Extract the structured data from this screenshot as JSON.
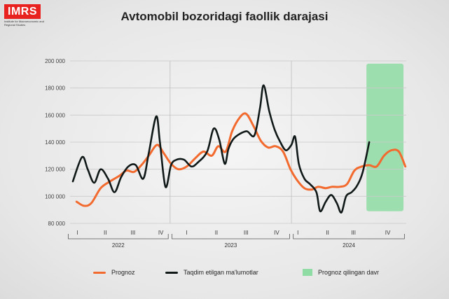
{
  "logo": {
    "text": "IMRS",
    "subtitle": "Institute for Macroeconomic and Regional Studies",
    "color": "#e8231f"
  },
  "chart_data": {
    "type": "line",
    "title": "Avtomobil bozoridagi faollik darajasi",
    "ylim": [
      80000,
      200000
    ],
    "y_ticks": [
      "200 000",
      "180 000",
      "160 000",
      "140 000",
      "120 000",
      "100 000",
      "80 000"
    ],
    "y_tick_values": [
      200000,
      180000,
      160000,
      140000,
      120000,
      100000,
      80000
    ],
    "x_domain": [
      0,
      36
    ],
    "grid": "horizontal",
    "legend_position": "bottom",
    "quarter_ticks": [
      {
        "label": "I",
        "x": 0.5
      },
      {
        "label": "II",
        "x": 3.5
      },
      {
        "label": "III",
        "x": 6.5
      },
      {
        "label": "IV",
        "x": 9.5
      },
      {
        "label": "I",
        "x": 12.3
      },
      {
        "label": "II",
        "x": 15.5
      },
      {
        "label": "III",
        "x": 18.7
      },
      {
        "label": "IV",
        "x": 22
      },
      {
        "label": "I",
        "x": 24.3
      },
      {
        "label": "II",
        "x": 27.5
      },
      {
        "label": "III",
        "x": 30.3
      },
      {
        "label": "IV",
        "x": 34
      }
    ],
    "years": [
      {
        "label": "2022",
        "x_start": -0.5,
        "x_end": 10.3
      },
      {
        "label": "2023",
        "x_start": 10.7,
        "x_end": 23.4
      },
      {
        "label": "2024",
        "x_start": 23.8,
        "x_end": 35.8
      }
    ],
    "year_separators": [
      10.5,
      23.6
    ],
    "forecast_period": {
      "label": "Prognoz qilingan davr",
      "x_start": 31.7,
      "x_end": 35.7,
      "y_min": 89000,
      "y_max": 198000,
      "color": "#8fdca4"
    },
    "series": [
      {
        "name": "Prognoz",
        "color": "#f26a2e",
        "x": [
          0.4,
          1.2,
          2.0,
          3.0,
          4.0,
          5.0,
          5.8,
          6.6,
          7.4,
          8.2,
          9.1,
          9.8,
          10.6,
          11.4,
          12.3,
          13.2,
          14.1,
          15.0,
          15.7,
          16.5,
          17.2,
          18.0,
          18.7,
          19.5,
          20.3,
          21.1,
          21.9,
          22.7,
          23.5,
          24.2,
          25.0,
          25.8,
          26.5,
          27.3,
          28.0,
          28.8,
          29.6,
          30.4,
          31.2,
          32.0,
          32.8,
          33.6,
          34.4,
          35.2,
          35.9
        ],
        "values": [
          96000,
          93000,
          95000,
          106000,
          111000,
          115000,
          119000,
          118000,
          123000,
          130000,
          138000,
          132000,
          124000,
          120000,
          122000,
          128000,
          133000,
          130000,
          137000,
          133000,
          148000,
          158000,
          161000,
          152000,
          141000,
          136000,
          137000,
          133000,
          120000,
          112000,
          106000,
          105000,
          107000,
          106000,
          107000,
          107000,
          109000,
          119000,
          122000,
          123000,
          122000,
          130000,
          134000,
          133000,
          122000
        ]
      },
      {
        "name": "Taqdim etilgan ma'lumotlar",
        "color": "#101818",
        "x": [
          0.0,
          1.0,
          1.6,
          2.3,
          3.0,
          3.8,
          4.5,
          5.2,
          6.0,
          6.8,
          7.6,
          8.2,
          9.0,
          9.4,
          10.0,
          10.6,
          11.2,
          12.0,
          12.8,
          13.5,
          14.5,
          15.2,
          15.8,
          16.4,
          16.8,
          17.3,
          18.0,
          18.8,
          19.6,
          20.2,
          20.6,
          21.2,
          21.8,
          22.4,
          23.0,
          23.6,
          24.0,
          24.4,
          25.0,
          25.6,
          26.3,
          26.7,
          27.3,
          27.9,
          28.5,
          29.0,
          29.5,
          30.1,
          30.7,
          31.3,
          32.0
        ],
        "values": [
          111000,
          129000,
          120000,
          110000,
          120000,
          113000,
          103000,
          114000,
          122000,
          123000,
          113000,
          132000,
          159000,
          140000,
          107000,
          123000,
          127000,
          127000,
          122000,
          125000,
          133000,
          150000,
          142000,
          124000,
          135000,
          142000,
          146000,
          148000,
          145000,
          165000,
          182000,
          163000,
          149000,
          140000,
          134000,
          138000,
          144000,
          124000,
          113000,
          109000,
          103000,
          89000,
          96000,
          101000,
          95000,
          88000,
          100000,
          103000,
          108000,
          118000,
          140000
        ]
      }
    ]
  },
  "legend": [
    {
      "label": "Prognoz",
      "kind": "line",
      "color": "#f26a2e"
    },
    {
      "label": "Taqdim etilgan ma'lumotlar",
      "kind": "line",
      "color": "#101818"
    },
    {
      "label": "Prognoz qilingan davr",
      "kind": "box",
      "color": "#8fdca4"
    }
  ]
}
